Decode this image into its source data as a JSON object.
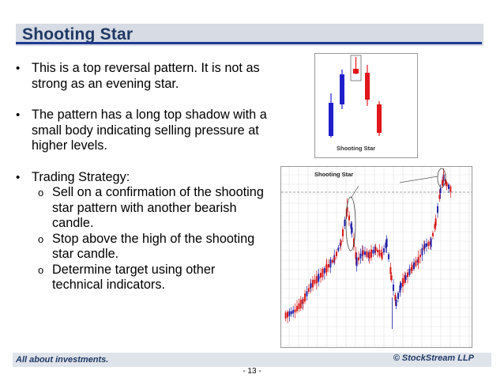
{
  "slide": {
    "title": "Shooting Star",
    "bullets": [
      {
        "text": "This is a top reversal pattern. It is not as strong as an evening star."
      },
      {
        "text": "The pattern has a long top shadow with a small body indicating selling pressure at higher levels."
      },
      {
        "text": "Trading Strategy:",
        "sub": [
          "Sell on a confirmation of the shooting star pattern with another bearish candle.",
          "Stop above the high of the shooting star candle.",
          "Determine target using other technical indicators."
        ]
      }
    ],
    "bullet_glyph": "•",
    "sub_glyph": "o"
  },
  "figure1": {
    "label": "Shooting Star",
    "colors": {
      "bull": "#1f1fc9",
      "bear": "#e0161a",
      "outline": "#555555"
    }
  },
  "figure2": {
    "label": "Shooting Star",
    "colors": {
      "up": "#2222aa",
      "down": "#d81b1b",
      "grid": "#e3e3e3",
      "dashed": "#888888"
    }
  },
  "footer": {
    "left": "All about investments.",
    "right": "© StockStream LLP",
    "page": "- 13 -"
  }
}
